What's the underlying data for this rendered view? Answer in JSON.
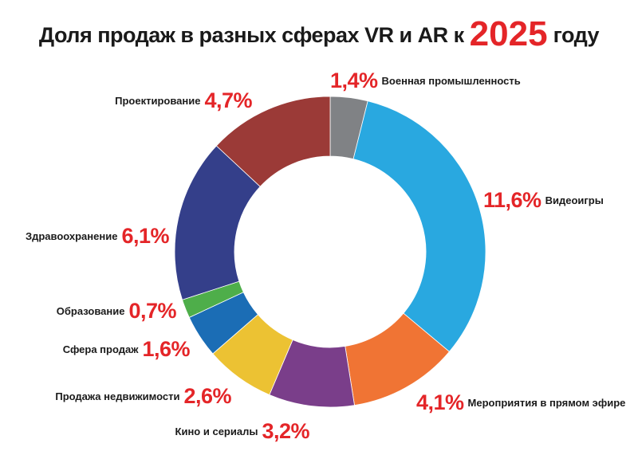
{
  "title": {
    "prefix": "Доля продаж в разных сферах VR и AR к",
    "year": "2025",
    "suffix": "году"
  },
  "colors": {
    "accent": "#e42528"
  },
  "chart_data": {
    "type": "pie",
    "donut": true,
    "title": "Доля продаж в разных сферах VR и AR к 2025 году",
    "unit": "%",
    "slices": [
      {
        "label": "Военная промышленность",
        "value": 1.4,
        "display": "1,4%",
        "color": "#808285"
      },
      {
        "label": "Видеоигры",
        "value": 11.6,
        "display": "11,6%",
        "color": "#29a8e0"
      },
      {
        "label": "Мероприятия в прямом эфире",
        "value": 4.1,
        "display": "4,1%",
        "color": "#f07434"
      },
      {
        "label": "Кино и сериалы",
        "value": 3.2,
        "display": "3,2%",
        "color": "#7a3e8a"
      },
      {
        "label": "Продажа недвижимости",
        "value": 2.6,
        "display": "2,6%",
        "color": "#ecc233"
      },
      {
        "label": "Сфера продаж",
        "value": 1.6,
        "display": "1,6%",
        "color": "#1b6db5"
      },
      {
        "label": "Образование",
        "value": 0.7,
        "display": "0,7%",
        "color": "#4eae4a"
      },
      {
        "label": "Здравоохранение",
        "value": 6.1,
        "display": "6,1%",
        "color": "#343f8a"
      },
      {
        "label": "Проектирование",
        "value": 4.7,
        "display": "4,7%",
        "color": "#9b3a37"
      }
    ]
  }
}
